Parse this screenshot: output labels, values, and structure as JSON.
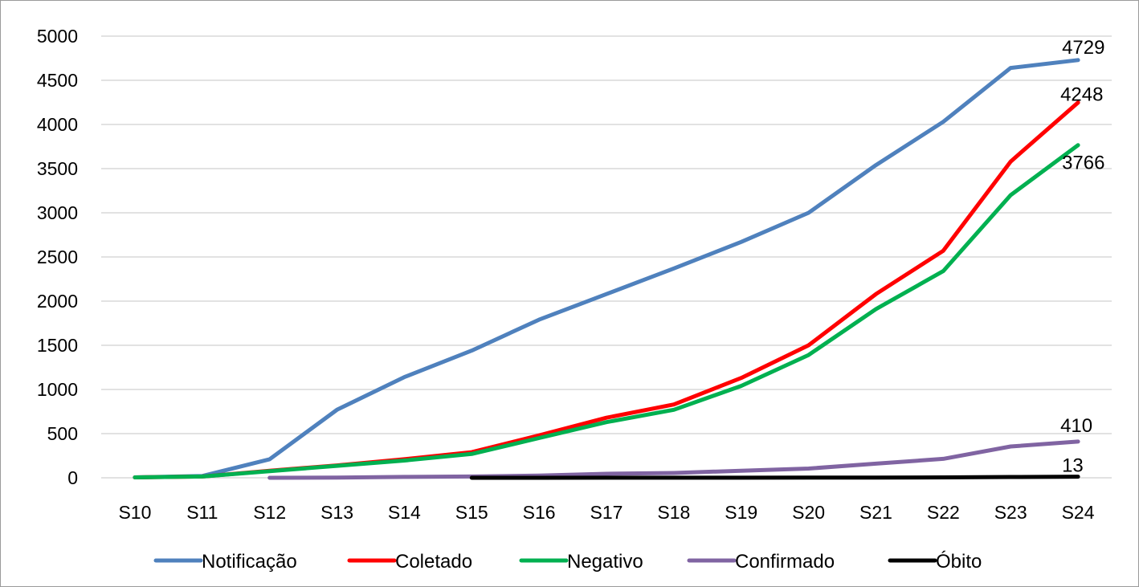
{
  "chart_data": {
    "type": "line",
    "categories": [
      "S10",
      "S11",
      "S12",
      "S13",
      "S14",
      "S15",
      "S16",
      "S17",
      "S18",
      "S19",
      "S20",
      "S21",
      "S22",
      "S23",
      "S24"
    ],
    "ylim": [
      0,
      5000
    ],
    "yticks": [
      "0",
      "500",
      "1000",
      "1500",
      "2000",
      "2500",
      "3000",
      "3500",
      "4000",
      "4500",
      "5000"
    ],
    "grid": true,
    "legend_position": "bottom",
    "series": [
      {
        "name": "Notificação",
        "color": "#4f81bd",
        "values": [
          5,
          20,
          210,
          770,
          1140,
          1440,
          1790,
          2080,
          2370,
          2670,
          3000,
          3540,
          4030,
          4640,
          4729
        ],
        "end_label": "4729"
      },
      {
        "name": "Coletado",
        "color": "#ff0000",
        "values": [
          5,
          15,
          80,
          140,
          210,
          290,
          480,
          680,
          830,
          1130,
          1500,
          2080,
          2570,
          3580,
          4248
        ],
        "end_label": "4248"
      },
      {
        "name": "Negativo",
        "color": "#00b050",
        "values": [
          5,
          15,
          75,
          135,
          195,
          270,
          450,
          630,
          770,
          1040,
          1390,
          1910,
          2340,
          3200,
          3766
        ],
        "end_label": "3766"
      },
      {
        "name": "Confirmado",
        "color": "#8064a2",
        "values": [
          null,
          null,
          0,
          3,
          10,
          15,
          25,
          45,
          55,
          80,
          105,
          160,
          215,
          355,
          410
        ],
        "end_label": "410"
      },
      {
        "name": "Óbito",
        "color": "#000000",
        "values": [
          null,
          null,
          null,
          null,
          null,
          0,
          0,
          1,
          1,
          1,
          2,
          3,
          5,
          9,
          13
        ],
        "end_label": "13"
      }
    ]
  }
}
